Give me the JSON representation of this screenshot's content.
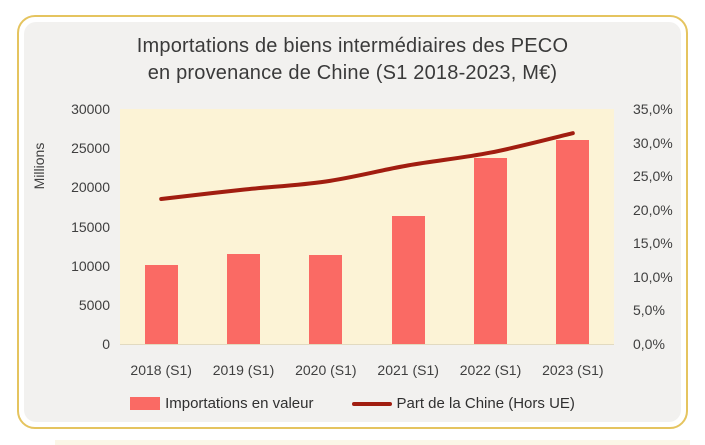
{
  "title": {
    "line1": "Importations de biens intermédiaires des PECO",
    "line2": "en provenance de Chine (S1 2018-2023, M€)"
  },
  "colors": {
    "card_border": "#E5C45F",
    "panel_bg": "#F2F1EF",
    "plot_bg": "#FCF3D6",
    "bar": "#FA6A64",
    "line": "#A11D10",
    "text": "#3F3F3F"
  },
  "chart_data": {
    "type": "bar",
    "title": "Importations de biens intermédiaires des PECO en provenance de Chine (S1 2018-2023, M€)",
    "categories": [
      "2018 (S1)",
      "2019 (S1)",
      "2020 (S1)",
      "2021 (S1)",
      "2022 (S1)",
      "2023 (S1)"
    ],
    "series": [
      {
        "name": "Importations en valeur",
        "type": "bar",
        "axis": "left",
        "values": [
          10100,
          11500,
          11400,
          16300,
          23700,
          26100
        ]
      },
      {
        "name": "Part de la Chine (Hors UE)",
        "type": "line",
        "axis": "right",
        "values": [
          21.6,
          23.0,
          24.2,
          26.6,
          28.5,
          31.4
        ]
      }
    ],
    "left_axis": {
      "label": "Millions",
      "min": 0,
      "max": 30000,
      "step": 5000,
      "tick_labels_top_to_bottom": [
        "30000",
        "25000",
        "20000",
        "15000",
        "10000",
        "5000",
        "0"
      ]
    },
    "right_axis": {
      "min": 0,
      "max": 35,
      "step": 5,
      "unit": "%",
      "tick_labels_top_to_bottom": [
        "35,0%",
        "30,0%",
        "25,0%",
        "20,0%",
        "15,0%",
        "10,0%",
        "5,0%",
        "0,0%"
      ]
    },
    "grid": false,
    "legend_position": "bottom",
    "legend": [
      {
        "label": "Importations en valeur",
        "swatch": "bar"
      },
      {
        "label": "Part de la Chine (Hors UE)",
        "swatch": "line"
      }
    ]
  }
}
